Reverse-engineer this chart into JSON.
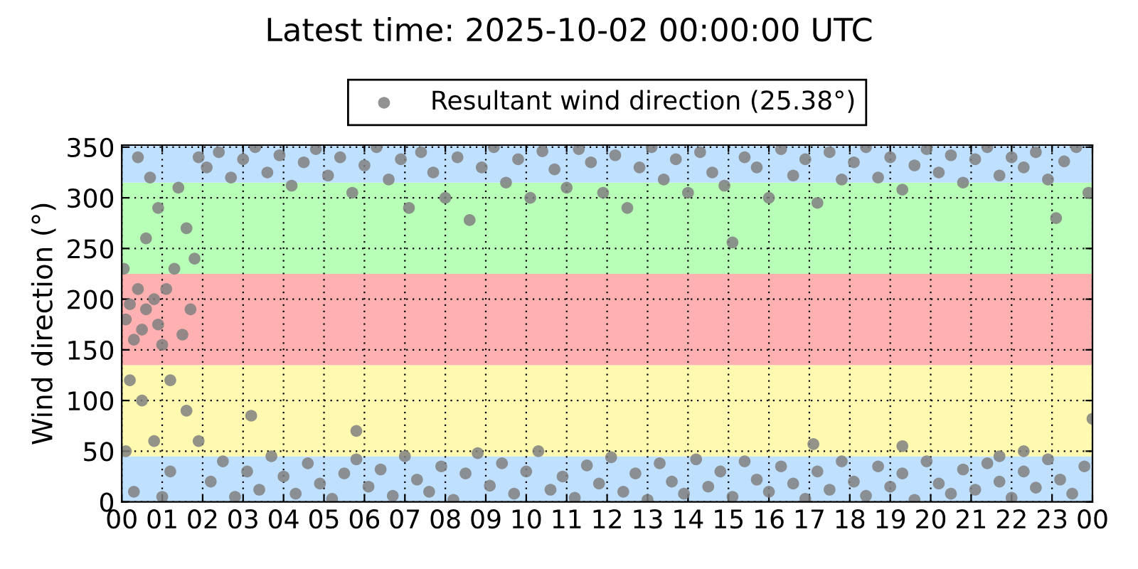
{
  "chart_data": {
    "type": "scatter",
    "title": "Latest time: 2025-10-02 00:00:00 UTC",
    "ylabel": "Wind direction (°)",
    "x": [
      0.1,
      0.2,
      0.3,
      0.4,
      0.5,
      0.6,
      0.8,
      0.9,
      1.0,
      1.1,
      1.3,
      1.5,
      1.7,
      0.2,
      0.5,
      0.8,
      1.2,
      0.3,
      0.1,
      0.6,
      0.9,
      1.4,
      1.6,
      1.8,
      0.4,
      1.9,
      0.7,
      1.2,
      1.6,
      1.9,
      0.05,
      1.0,
      2.1,
      2.4,
      2.7,
      3.0,
      3.3,
      3.6,
      3.9,
      4.2,
      4.5,
      4.8,
      5.1,
      5.4,
      5.7,
      6.0,
      6.3,
      6.6,
      6.9,
      7.1,
      7.4,
      7.7,
      8.0,
      8.3,
      8.6,
      8.9,
      9.2,
      9.5,
      9.8,
      10.1,
      10.4,
      10.7,
      11.0,
      11.3,
      11.6,
      11.9,
      12.2,
      12.5,
      12.8,
      13.1,
      13.4,
      13.7,
      14.0,
      14.3,
      14.6,
      14.9,
      15.1,
      15.4,
      15.7,
      16.0,
      16.3,
      16.6,
      16.9,
      17.2,
      17.5,
      17.8,
      18.1,
      18.4,
      18.7,
      19.0,
      19.3,
      19.6,
      19.9,
      20.2,
      20.5,
      20.8,
      21.1,
      21.4,
      21.7,
      22.0,
      22.3,
      22.6,
      22.9,
      23.1,
      23.3,
      23.6,
      23.9,
      3.2,
      5.8,
      17.1,
      19.3,
      21.7,
      22.3,
      24.0,
      2.2,
      2.5,
      2.8,
      3.1,
      3.4,
      3.7,
      4.0,
      4.3,
      4.6,
      4.9,
      5.2,
      5.5,
      5.8,
      6.1,
      6.4,
      6.7,
      7.0,
      7.3,
      7.6,
      7.9,
      8.2,
      8.5,
      8.8,
      9.1,
      9.4,
      9.7,
      10.0,
      10.3,
      10.6,
      10.9,
      11.2,
      11.5,
      11.8,
      12.1,
      12.4,
      12.7,
      13.0,
      13.3,
      13.6,
      13.9,
      14.2,
      14.5,
      14.8,
      15.1,
      15.4,
      15.7,
      16.0,
      16.3,
      16.6,
      16.9,
      17.2,
      17.5,
      17.8,
      18.1,
      18.4,
      18.7,
      19.0,
      19.3,
      19.6,
      19.9,
      20.2,
      20.5,
      20.8,
      21.1,
      21.4,
      21.7,
      22.0,
      22.3,
      22.6,
      22.9,
      23.2,
      23.5,
      23.8
    ],
    "series": [
      {
        "name": "Resultant wind direction (25.38°)",
        "color": "#808080",
        "values": [
          180,
          195,
          160,
          210,
          170,
          190,
          200,
          175,
          155,
          210,
          230,
          165,
          190,
          120,
          100,
          60,
          30,
          10,
          50,
          260,
          290,
          310,
          270,
          240,
          340,
          340,
          320,
          120,
          90,
          60,
          230,
          5,
          330,
          345,
          320,
          338,
          350,
          325,
          342,
          312,
          335,
          348,
          322,
          340,
          305,
          332,
          350,
          318,
          338,
          290,
          345,
          325,
          300,
          340,
          278,
          330,
          350,
          315,
          338,
          300,
          346,
          328,
          310,
          348,
          335,
          305,
          342,
          290,
          330,
          350,
          318,
          338,
          305,
          345,
          325,
          312,
          256,
          340,
          330,
          300,
          348,
          322,
          338,
          295,
          345,
          318,
          335,
          350,
          320,
          340,
          308,
          332,
          348,
          325,
          342,
          315,
          338,
          350,
          322,
          340,
          330,
          345,
          318,
          280,
          336,
          350,
          305,
          85,
          70,
          57,
          55,
          45,
          50,
          82,
          20,
          40,
          5,
          30,
          12,
          45,
          25,
          8,
          38,
          18,
          3,
          28,
          42,
          15,
          32,
          6,
          45,
          22,
          10,
          35,
          2,
          28,
          48,
          16,
          38,
          8,
          30,
          50,
          12,
          25,
          4,
          36,
          18,
          44,
          10,
          28,
          2,
          38,
          20,
          8,
          42,
          15,
          30,
          5,
          40,
          22,
          10,
          35,
          18,
          3,
          30,
          12,
          40,
          20,
          6,
          35,
          15,
          28,
          2,
          40,
          18,
          8,
          32,
          12,
          38,
          20,
          4,
          30,
          14,
          42,
          22,
          8,
          35
        ]
      }
    ],
    "xlim": [
      0,
      24
    ],
    "ylim": [
      0,
      352
    ],
    "xticks": [
      {
        "value": 0,
        "label": "00"
      },
      {
        "value": 1,
        "label": "01"
      },
      {
        "value": 2,
        "label": "02"
      },
      {
        "value": 3,
        "label": "03"
      },
      {
        "value": 4,
        "label": "04"
      },
      {
        "value": 5,
        "label": "05"
      },
      {
        "value": 6,
        "label": "06"
      },
      {
        "value": 7,
        "label": "07"
      },
      {
        "value": 8,
        "label": "08"
      },
      {
        "value": 9,
        "label": "09"
      },
      {
        "value": 10,
        "label": "10"
      },
      {
        "value": 11,
        "label": "11"
      },
      {
        "value": 12,
        "label": "12"
      },
      {
        "value": 13,
        "label": "13"
      },
      {
        "value": 14,
        "label": "14"
      },
      {
        "value": 15,
        "label": "15"
      },
      {
        "value": 16,
        "label": "16"
      },
      {
        "value": 17,
        "label": "17"
      },
      {
        "value": 18,
        "label": "18"
      },
      {
        "value": 19,
        "label": "19"
      },
      {
        "value": 20,
        "label": "20"
      },
      {
        "value": 21,
        "label": "21"
      },
      {
        "value": 22,
        "label": "22"
      },
      {
        "value": 23,
        "label": "23"
      },
      {
        "value": 24,
        "label": "00"
      }
    ],
    "yticks": [
      0,
      50,
      100,
      150,
      200,
      250,
      300,
      350
    ],
    "bands": [
      {
        "axis": "y",
        "from": 0,
        "to": 45,
        "color": "#bfe0ff"
      },
      {
        "axis": "y",
        "from": 45,
        "to": 135,
        "color": "#fffab0"
      },
      {
        "axis": "y",
        "from": 135,
        "to": 225,
        "color": "#ffb0b0"
      },
      {
        "axis": "y",
        "from": 225,
        "to": 315,
        "color": "#b8ffb8"
      },
      {
        "axis": "y",
        "from": 315,
        "to": 360,
        "color": "#bfe0ff"
      }
    ],
    "grid": true,
    "legend": "top",
    "marker": "circle"
  }
}
